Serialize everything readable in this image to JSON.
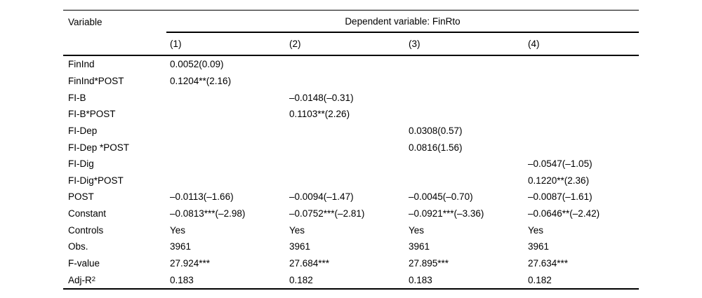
{
  "table": {
    "header": {
      "variable_label": "Variable",
      "dependent_label": "Dependent variable: FinRto",
      "columns": [
        "(1)",
        "(2)",
        "(3)",
        "(4)"
      ]
    },
    "rows": [
      {
        "label": "FinInd",
        "c1": "0.0052(0.09)",
        "c2": "",
        "c3": "",
        "c4": ""
      },
      {
        "label": "FinInd*POST",
        "c1": "0.1204**(2.16)",
        "c2": "",
        "c3": "",
        "c4": ""
      },
      {
        "label": "FI-B",
        "c1": "",
        "c2": "–0.0148(–0.31)",
        "c3": "",
        "c4": ""
      },
      {
        "label": "FI-B*POST",
        "c1": "",
        "c2": "0.1103**(2.26)",
        "c3": "",
        "c4": ""
      },
      {
        "label": "FI-Dep",
        "c1": "",
        "c2": "",
        "c3": "0.0308(0.57)",
        "c4": ""
      },
      {
        "label": "FI-Dep *POST",
        "c1": "",
        "c2": "",
        "c3": "0.0816(1.56)",
        "c4": ""
      },
      {
        "label": "FI-Dig",
        "c1": "",
        "c2": "",
        "c3": "",
        "c4": "–0.0547(–1.05)"
      },
      {
        "label": "FI-Dig*POST",
        "c1": "",
        "c2": "",
        "c3": "",
        "c4": "0.1220**(2.36)"
      },
      {
        "label": "POST",
        "c1": "–0.0113(–1.66)",
        "c2": "–0.0094(–1.47)",
        "c3": "–0.0045(–0.70)",
        "c4": "–0.0087(–1.61)"
      },
      {
        "label": "Constant",
        "c1": "–0.0813***(–2.98)",
        "c2": "–0.0752***(–2.81)",
        "c3": "–0.0921***(–3.36)",
        "c4": "–0.0646**(–2.42)"
      },
      {
        "label": "Controls",
        "c1": "Yes",
        "c2": "Yes",
        "c3": "Yes",
        "c4": "Yes"
      },
      {
        "label": "Obs.",
        "c1": "3961",
        "c2": "3961",
        "c3": "3961",
        "c4": "3961"
      },
      {
        "label": "F-value",
        "c1": "27.924***",
        "c2": "27.684***",
        "c3": "27.895***",
        "c4": "27.634***"
      },
      {
        "label": "Adj-R",
        "label_sup": "2",
        "c1": "0.183",
        "c2": "0.182",
        "c3": "0.183",
        "c4": "0.182"
      }
    ]
  }
}
